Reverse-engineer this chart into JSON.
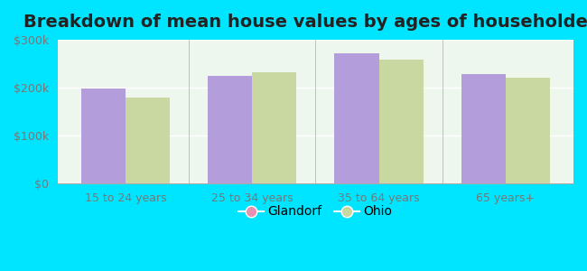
{
  "title": "Breakdown of mean house values by ages of householders",
  "categories": [
    "15 to 24 years",
    "25 to 34 years",
    "35 to 64 years",
    "65 years+"
  ],
  "glandorf_values": [
    198000,
    225000,
    272000,
    228000
  ],
  "ohio_values": [
    180000,
    232000,
    258000,
    220000
  ],
  "glandorf_color": "#b39ddb",
  "ohio_color": "#c8d8a0",
  "background_color": "#00e5ff",
  "plot_bg_color": "#eef7ee",
  "ylim": [
    0,
    300000
  ],
  "yticks": [
    0,
    100000,
    200000,
    300000
  ],
  "ytick_labels": [
    "$0",
    "$100k",
    "$200k",
    "$300k"
  ],
  "legend_glandorf": "Glandorf",
  "legend_ohio": "Ohio",
  "legend_glandorf_marker_color": "#e991b0",
  "legend_ohio_marker_color": "#c8d8a0",
  "bar_width": 0.35,
  "title_fontsize": 14,
  "tick_fontsize": 9,
  "legend_fontsize": 10
}
